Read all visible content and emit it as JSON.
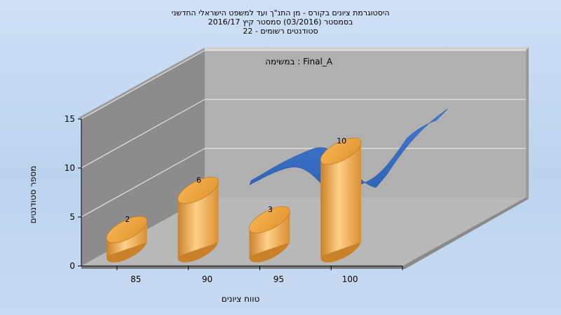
{
  "chart_data": {
    "type": "bar",
    "title_lines": [
      "היסטוגרמת ציונים בקורס - מן התנ\"ך ועד למשפט הישראלי החדשני",
      "בסמסטר  (03/2016)  סמסטר קיץ 2016/17",
      "סטודנטים רשומים - 22"
    ],
    "annotation": "במשימה : Final_A",
    "xlabel": "טווח ציונים",
    "ylabel": "מספר סטודנטים",
    "categories": [
      "85",
      "90",
      "95",
      "100"
    ],
    "values": [
      2,
      6,
      3,
      10
    ],
    "y_ticks": [
      0,
      5,
      10,
      15
    ],
    "ylim": [
      0,
      15
    ],
    "grid": true,
    "series_colors": {
      "bars": "#e8a03c",
      "ribbon": "#2f6dc7"
    }
  }
}
